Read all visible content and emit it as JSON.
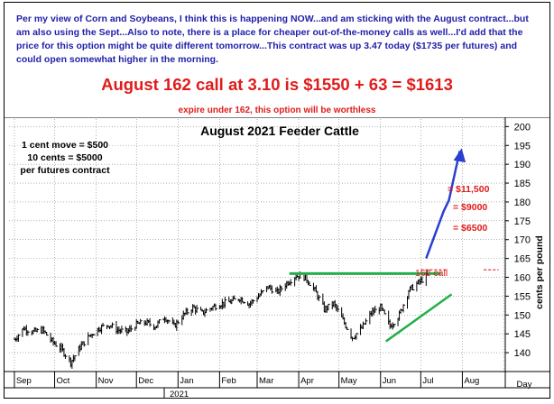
{
  "notes": {
    "intro": "Per my view of Corn and Soybeans, I think this is happening NOW...and am sticking with the August contract...but am also using the Sept...Also to note, there is a place for cheaper out-of-the-money calls as well...I'd add that the price for this option might be quite different tomorrow...This contract was up 3.47 today ($1735 per futures) and could open somewhat higher in the morning.",
    "headline": "August 162 call at 3.10 is $1550 + 63 = $1613",
    "expire": "expire under 162, this option will be worthless"
  },
  "chart_data": {
    "type": "bar",
    "style": "ohlc",
    "title": "August 2021 Feeder Cattle",
    "xlabel": "Day",
    "ylabel": "cents per pound",
    "ylim": [
      135,
      202
    ],
    "y_ticks": [
      140,
      145,
      150,
      155,
      160,
      165,
      170,
      175,
      180,
      185,
      190,
      195,
      200
    ],
    "x_ticks": [
      "Sep",
      "Oct",
      "Nov",
      "Dec",
      "Jan",
      "Feb",
      "Mar",
      "Apr",
      "May",
      "Jun",
      "Jul",
      "Aug"
    ],
    "x_subtitle": "2021",
    "grid": true,
    "colors": {
      "bars": "#000000",
      "resistance": "#22b04a",
      "support": "#22b04a",
      "projection": "#2a3fcf",
      "annotation": "#e01b1b",
      "grid": "#808080"
    },
    "series": [
      {
        "dates": [
          "2020-09-01",
          "2020-09-08",
          "2020-09-15",
          "2020-09-22",
          "2020-09-29",
          "2020-10-06",
          "2020-10-13",
          "2020-10-20",
          "2020-10-27",
          "2020-11-03",
          "2020-11-10",
          "2020-11-17",
          "2020-11-24",
          "2020-12-01",
          "2020-12-08",
          "2020-12-15",
          "2020-12-22",
          "2020-12-29",
          "2021-01-05",
          "2021-01-12",
          "2021-01-19",
          "2021-01-26",
          "2021-02-02",
          "2021-02-09",
          "2021-02-16",
          "2021-02-23",
          "2021-03-02",
          "2021-03-09",
          "2021-03-16",
          "2021-03-23",
          "2021-03-30",
          "2021-04-06",
          "2021-04-13",
          "2021-04-20",
          "2021-04-27",
          "2021-05-04",
          "2021-05-11",
          "2021-05-18",
          "2021-05-25",
          "2021-06-01",
          "2021-06-08",
          "2021-06-15",
          "2021-06-22",
          "2021-06-29",
          "2021-07-06"
        ],
        "close": [
          143.5,
          146.5,
          145.5,
          146.0,
          143.0,
          141.0,
          137.5,
          141.5,
          144.5,
          146.5,
          147.5,
          146.0,
          145.5,
          147.5,
          148.0,
          147.0,
          149.5,
          147.0,
          150.0,
          152.0,
          150.5,
          152.0,
          153.0,
          153.5,
          154.5,
          153.0,
          155.0,
          157.5,
          156.0,
          158.5,
          160.5,
          160.0,
          156.5,
          151.5,
          153.0,
          148.5,
          144.0,
          146.5,
          150.5,
          152.0,
          147.0,
          150.0,
          156.5,
          158.5,
          160.5
        ]
      }
    ],
    "annotations": {
      "contract_note": [
        "1 cent move = $500",
        "10 cents = $5000",
        "per futures contract"
      ],
      "strike_label": "162 call",
      "targets": [
        {
          "label": "= $11,500",
          "y": 185
        },
        {
          "label": "= $9000",
          "y": 180
        },
        {
          "label": "= $6500",
          "y": 175
        }
      ],
      "strike": 162,
      "resistance": {
        "value": 161,
        "start": "2021-03-25",
        "end": "2021-07-05"
      },
      "support": {
        "start": [
          "2021-06-05",
          143.0
        ],
        "end": [
          "2021-07-24",
          155.5
        ]
      },
      "projection": [
        [
          "2021-07-05",
          165.0
        ],
        [
          "2021-07-18",
          177.5
        ],
        [
          "2021-07-22",
          180.5
        ],
        [
          "2021-07-30",
          193.5
        ]
      ]
    }
  }
}
